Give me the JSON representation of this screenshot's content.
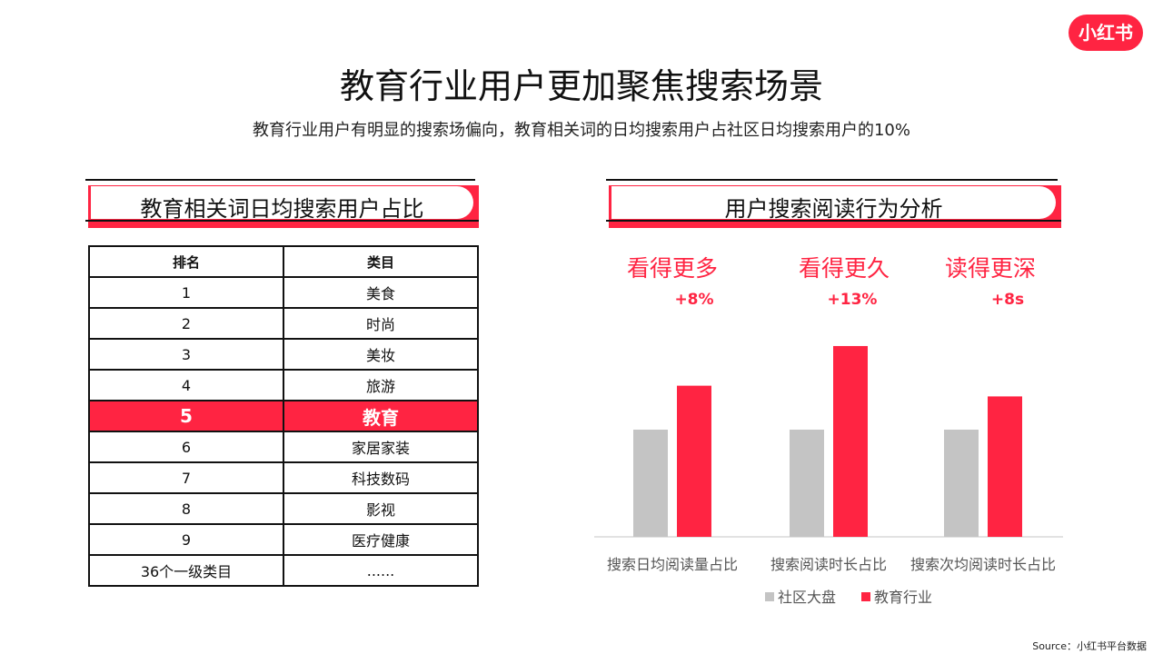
{
  "brand": {
    "logo_text": "小红书",
    "accent": "#ff2442",
    "neutral": "#c4c4c4"
  },
  "header": {
    "title": "教育行业用户更加聚焦搜索场景",
    "subtitle": "教育行业用户有明显的搜索场偏向，教育相关词的日均搜索用户占社区日均搜索用户的10%"
  },
  "left_panel": {
    "heading": "教育相关词日均搜索用户占比",
    "columns": [
      "排名",
      "类目"
    ],
    "rows": [
      [
        "1",
        "美食"
      ],
      [
        "2",
        "时尚"
      ],
      [
        "3",
        "美妆"
      ],
      [
        "4",
        "旅游"
      ],
      [
        "5",
        "教育"
      ],
      [
        "6",
        "家居家装"
      ],
      [
        "7",
        "科技数码"
      ],
      [
        "8",
        "影视"
      ],
      [
        "9",
        "医疗健康"
      ],
      [
        "36个一级类目",
        "......"
      ]
    ],
    "highlight_row": 4
  },
  "right_panel": {
    "heading": "用户搜索阅读行为分析"
  },
  "chart_data": {
    "type": "bar",
    "categories": [
      "搜索日均阅读量占比",
      "搜索阅读时长占比",
      "搜索次均阅读时长占比"
    ],
    "series": [
      {
        "name": "社区大盘",
        "values": [
          100,
          100,
          100
        ],
        "color": "#c4c4c4"
      },
      {
        "name": "教育行业",
        "values": [
          141,
          178,
          131
        ],
        "color": "#ff2442"
      }
    ],
    "annotations": [
      {
        "headline": "看得更多",
        "delta": "+8%"
      },
      {
        "headline": "看得更久",
        "delta": "+13%"
      },
      {
        "headline": "读得更深",
        "delta": "+8s"
      }
    ],
    "ylim": [
      0,
      200
    ],
    "grid": false,
    "legend": "bottom-center"
  },
  "footer": {
    "source": "Source：小红书平台数据"
  }
}
